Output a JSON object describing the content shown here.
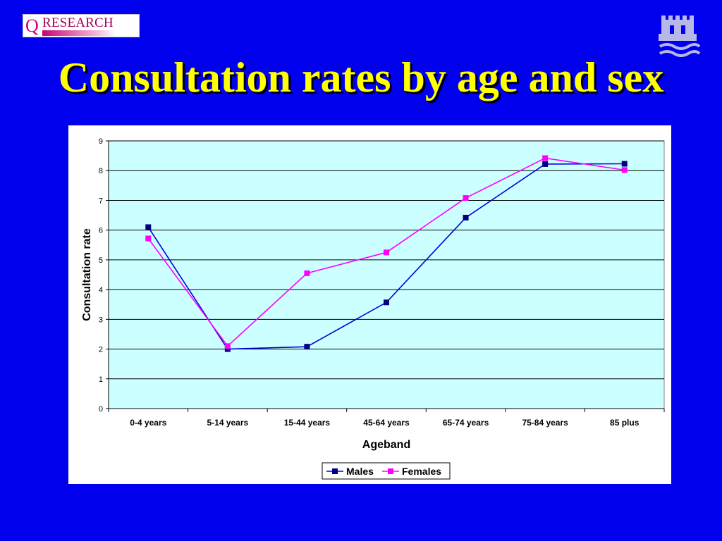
{
  "logo": {
    "q": "Q",
    "word": "RESEARCH"
  },
  "title": "Consultation rates by age and sex",
  "crest_icon": "university-crest-icon",
  "colors": {
    "background": "#0000ee",
    "title": "#ffff00",
    "plot_area": "#ccffff",
    "males": "#000080",
    "males_line": "#0000dd",
    "females": "#ff00ff"
  },
  "chart_data": {
    "type": "line",
    "categories": [
      "0-4 years",
      "5-14 years",
      "15-44 years",
      "45-64 years",
      "65-74 years",
      "75-84 years",
      "85 plus"
    ],
    "series": [
      {
        "name": "Males",
        "values": [
          6.1,
          2.0,
          2.08,
          3.57,
          6.42,
          8.22,
          8.23
        ]
      },
      {
        "name": "Females",
        "values": [
          5.72,
          2.1,
          4.55,
          5.25,
          7.08,
          8.42,
          8.02
        ]
      }
    ],
    "title": "",
    "xlabel": "Ageband",
    "ylabel": "Consultation rate",
    "ylim": [
      0,
      9
    ],
    "yticks": [
      0,
      1,
      2,
      3,
      4,
      5,
      6,
      7,
      8,
      9
    ],
    "grid": "horizontal",
    "legend": "bottom"
  }
}
